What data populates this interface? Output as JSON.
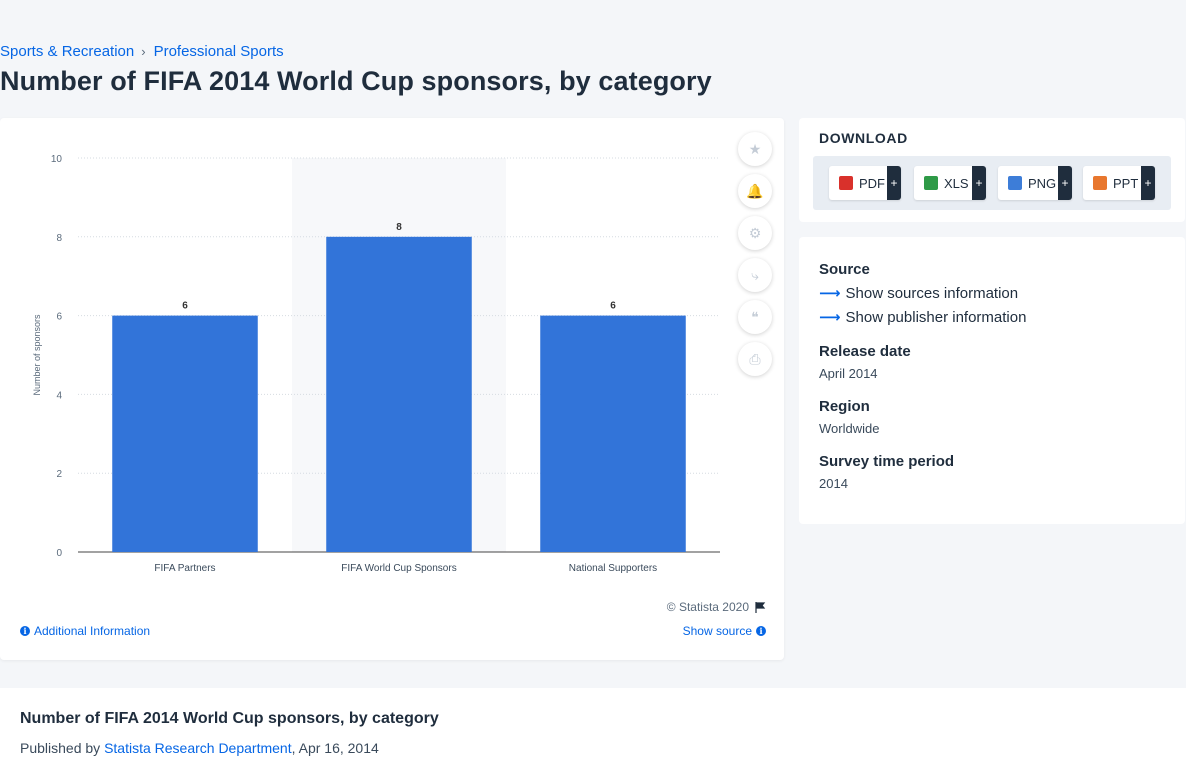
{
  "breadcrumb": {
    "items": [
      "Sports & Recreation",
      "Professional Sports"
    ],
    "separator": "›"
  },
  "page_title": "Number of FIFA 2014 World Cup sponsors, by category",
  "chart_data": {
    "type": "bar",
    "categories": [
      "FIFA Partners",
      "FIFA World Cup Sponsors",
      "National Supporters"
    ],
    "values": [
      6,
      8,
      6
    ],
    "data_labels": [
      "6",
      "8",
      "6"
    ],
    "ylabel": "Number of sponsors",
    "xlabel": "",
    "ylim": [
      0,
      10
    ],
    "yticks": [
      "0",
      "2",
      "4",
      "6",
      "8",
      "10"
    ],
    "bar_color": "#3274d9",
    "highlighted_category": "FIFA World Cup Sponsors",
    "grid": true
  },
  "tools": [
    {
      "icon": "star-icon",
      "glyph": "★"
    },
    {
      "icon": "bell-icon",
      "glyph": "🔔"
    },
    {
      "icon": "gear-icon",
      "glyph": "⚙"
    },
    {
      "icon": "share-icon",
      "glyph": "⤷"
    },
    {
      "icon": "quote-icon",
      "glyph": "❝"
    },
    {
      "icon": "print-icon",
      "glyph": "⎙"
    }
  ],
  "copyright": "© Statista 2020",
  "additional_info": "Additional Information",
  "show_source": "Show source",
  "download": {
    "title": "DOWNLOAD",
    "buttons": [
      {
        "label": "PDF",
        "plus": "+",
        "color": "#d9312b"
      },
      {
        "label": "XLS",
        "plus": "+",
        "color": "#2e9a47"
      },
      {
        "label": "PNG",
        "plus": "+",
        "color": "#3d7dd8"
      },
      {
        "label": "PPT",
        "plus": "+",
        "color": "#e8772e"
      }
    ]
  },
  "meta": {
    "source_heading": "Source",
    "show_sources": "Show sources information",
    "show_publisher": "Show publisher information",
    "release_heading": "Release date",
    "release_value": "April 2014",
    "region_heading": "Region",
    "region_value": "Worldwide",
    "survey_heading": "Survey time period",
    "survey_value": "2014"
  },
  "bottom": {
    "title": "Number of FIFA 2014 World Cup sponsors, by category",
    "published_by": "Published by",
    "publisher": "Statista Research Department",
    "date": ", Apr 16, 2014"
  },
  "colors": {
    "accent": "#0666e5",
    "text": "#1f2d3d"
  }
}
